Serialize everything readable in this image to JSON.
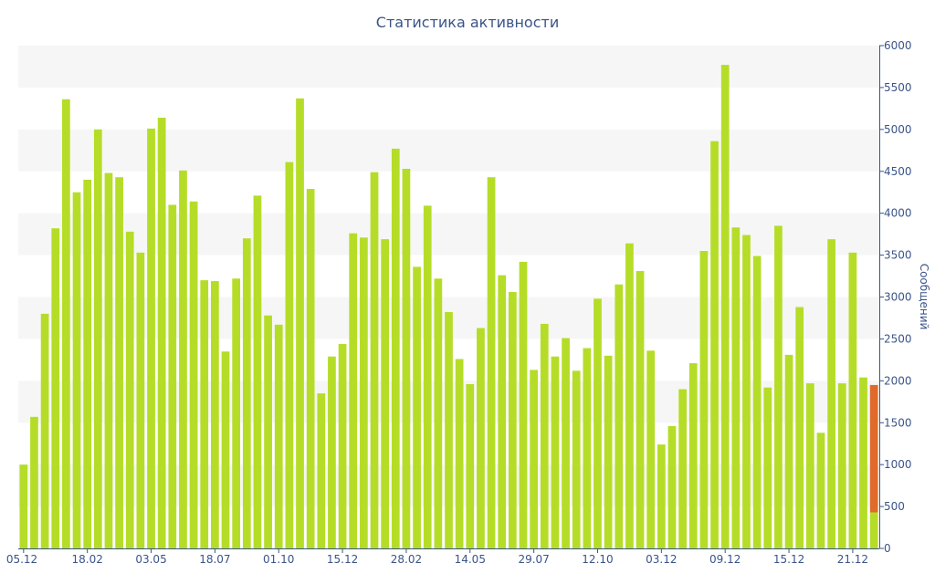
{
  "chart_data": {
    "type": "bar",
    "title": "Статистика активности",
    "ylabel": "Сообщений",
    "xlabel": "",
    "ylim": [
      0,
      6000
    ],
    "y_ticks": [
      0,
      500,
      1000,
      1500,
      2000,
      2500,
      3000,
      3500,
      4000,
      4500,
      5000,
      5500,
      6000
    ],
    "y_axis_side": "right",
    "grid": "alternating horizontal bands",
    "x_tick_labels": [
      {
        "index": 0,
        "label": "05.12"
      },
      {
        "index": 6,
        "label": "18.02"
      },
      {
        "index": 12,
        "label": "03.05"
      },
      {
        "index": 18,
        "label": "18.07"
      },
      {
        "index": 24,
        "label": "01.10"
      },
      {
        "index": 30,
        "label": "15.12"
      },
      {
        "index": 36,
        "label": "28.02"
      },
      {
        "index": 42,
        "label": "14.05"
      },
      {
        "index": 48,
        "label": "29.07"
      },
      {
        "index": 54,
        "label": "12.10"
      },
      {
        "index": 60,
        "label": "03.12"
      },
      {
        "index": 66,
        "label": "09.12"
      },
      {
        "index": 72,
        "label": "15.12"
      },
      {
        "index": 78,
        "label": "21.12"
      }
    ],
    "bar_color": "#b5dd28",
    "highlight_color": "#e06a2a",
    "values": [
      1000,
      1570,
      2800,
      3820,
      5360,
      4250,
      4400,
      5000,
      4480,
      4430,
      3780,
      3530,
      5010,
      5140,
      4100,
      4510,
      4140,
      3200,
      3190,
      2350,
      3220,
      3700,
      4210,
      2780,
      2670,
      4610,
      5370,
      4290,
      1850,
      2290,
      2440,
      3760,
      3710,
      4490,
      3690,
      4770,
      4530,
      3360,
      4090,
      3220,
      2820,
      2260,
      1960,
      2630,
      4430,
      3260,
      3060,
      3420,
      2130,
      2680,
      2290,
      2510,
      2120,
      2390,
      2980,
      2300,
      3150,
      3640,
      3310,
      2360,
      1240,
      1460,
      1900,
      2210,
      3550,
      4860,
      5770,
      3830,
      3740,
      3490,
      1920,
      3850,
      2310,
      2880,
      1970,
      1380,
      3690,
      1970,
      3530,
      2040
    ],
    "last_bar": {
      "total": 1950,
      "base": 430
    }
  }
}
